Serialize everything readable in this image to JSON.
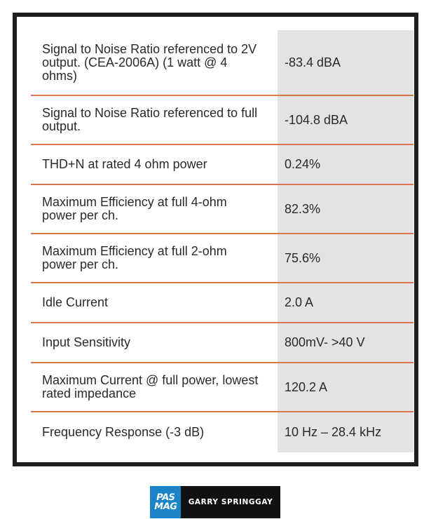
{
  "specs": [
    {
      "label": "Signal to Noise Ratio referenced to 2V output. (CEA-2006A) (1 watt @ 4 ohms)",
      "value": "-83.4 dBA"
    },
    {
      "label": "Signal to Noise Ratio referenced to full output.",
      "value": "-104.8 dBA"
    },
    {
      "label": "THD+N at rated 4 ohm power",
      "value": "0.24%"
    },
    {
      "label": "Maximum Efficiency at full 4-ohm power per ch.",
      "value": "82.3%"
    },
    {
      "label": "Maximum Efficiency at full 2-ohm power per ch.",
      "value": "75.6%"
    },
    {
      "label": "Idle Current",
      "value": "2.0 A"
    },
    {
      "label": "Input Sensitivity",
      "value": "800mV- >40 V"
    },
    {
      "label": "Maximum Current @ full power, lowest rated impedance",
      "value": "120.2 A"
    },
    {
      "label": "Frequency Response (-3 dB)",
      "value": "10 Hz – 28.4 kHz"
    }
  ],
  "logo": {
    "line1": "PAS",
    "line2": "MAG"
  },
  "credit": "GARRY SPRINGGAY",
  "colors": {
    "divider": "#d9764e",
    "value_bg": "#e3e3e3",
    "frame": "#1f1f1f",
    "logo_blue": "#1a84c6"
  }
}
